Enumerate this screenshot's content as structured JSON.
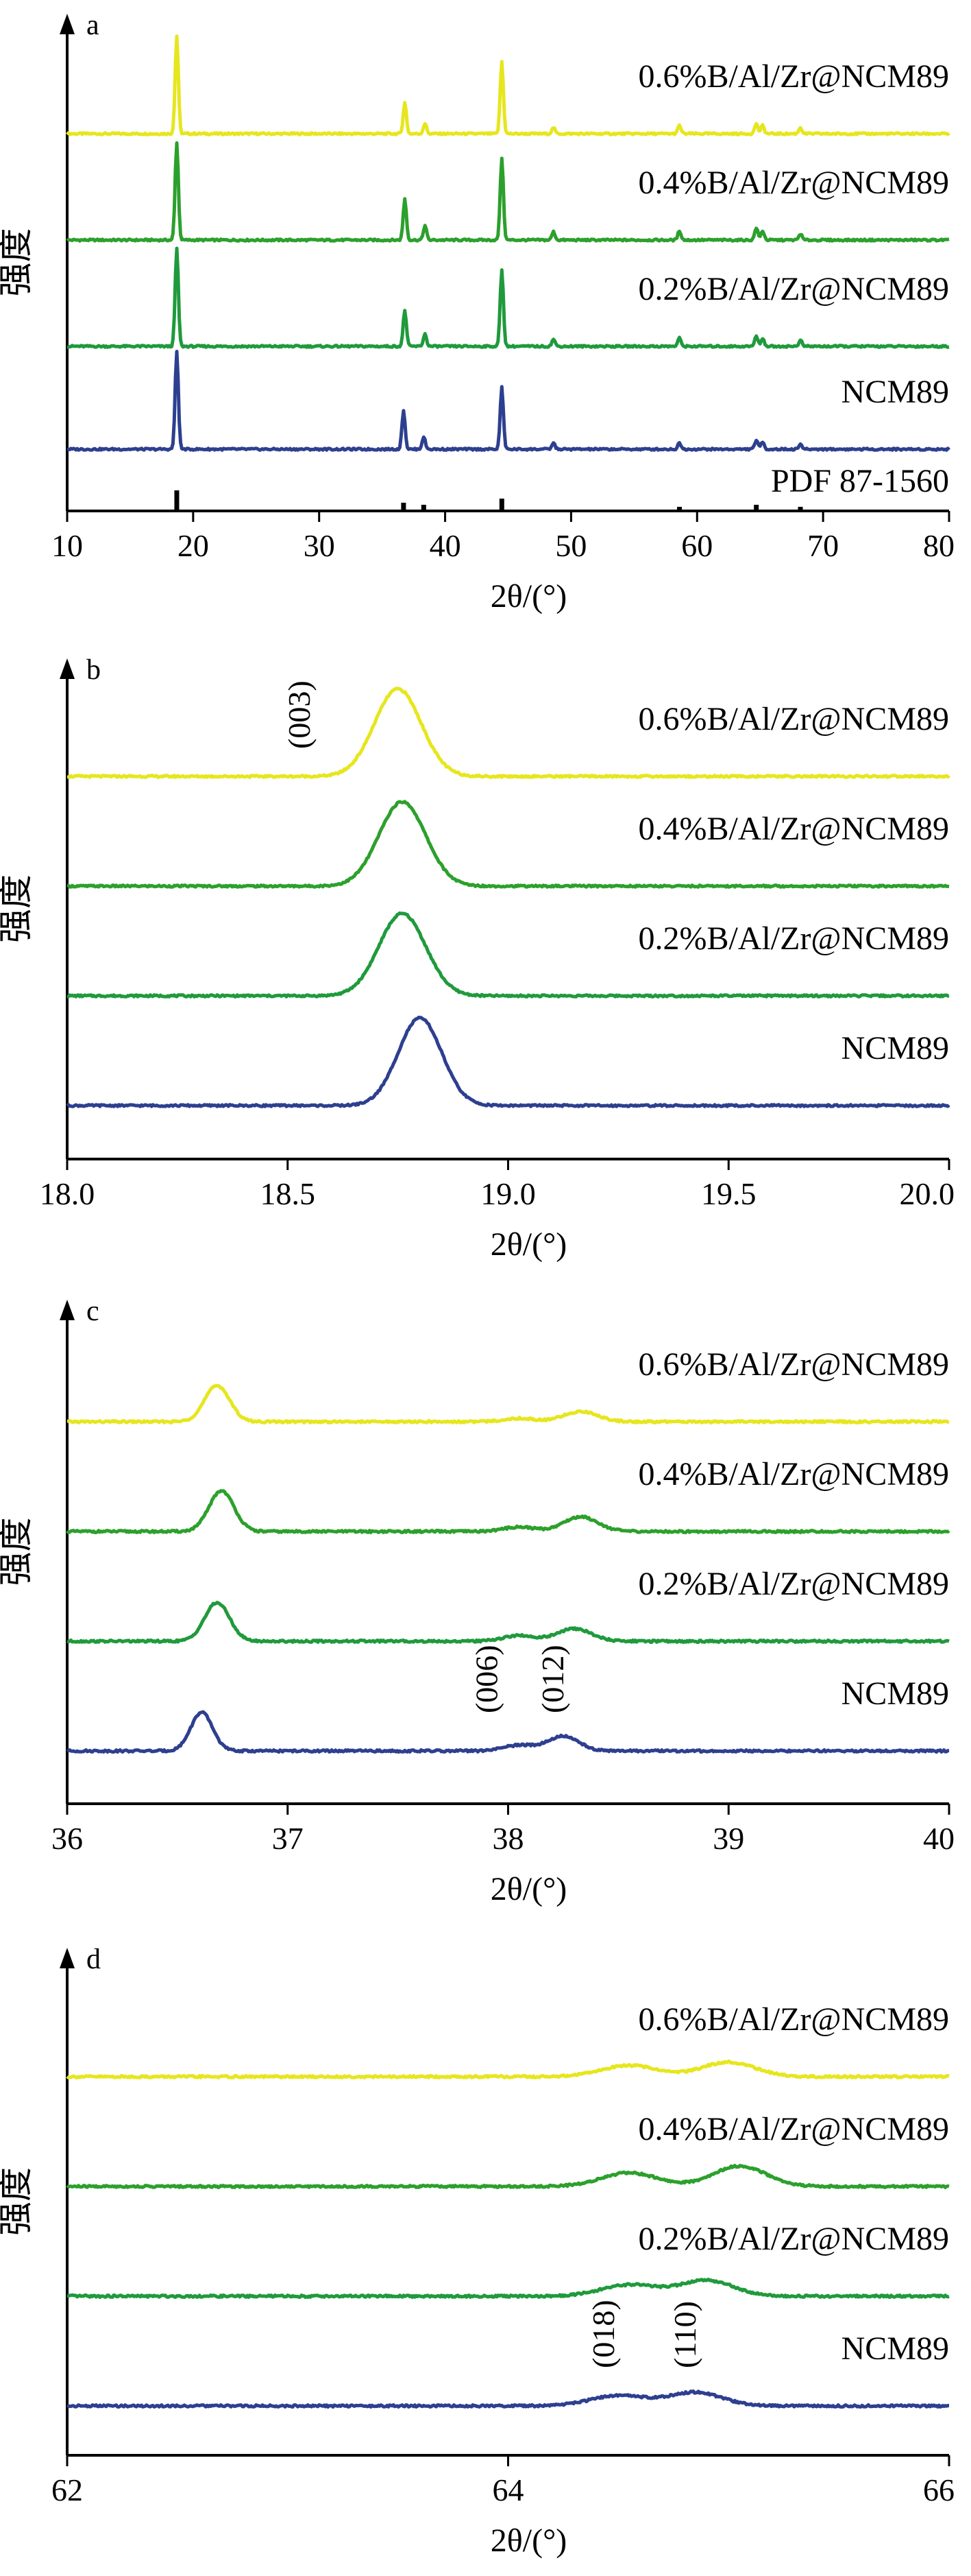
{
  "chart_data": [
    {
      "type": "line",
      "panel_label": "a",
      "xlabel": "2θ/(°)",
      "ylabel": "强度",
      "xlim": [
        10,
        80
      ],
      "xticks": [
        10,
        20,
        30,
        40,
        50,
        60,
        70,
        80
      ],
      "series": [
        {
          "name": "0.6%B/Al/Zr@NCM89",
          "color": "#e6e61e",
          "offset": 4,
          "peaks": [
            [
              18.7,
              0.95
            ],
            [
              36.8,
              0.3
            ],
            [
              38.4,
              0.1
            ],
            [
              44.5,
              0.7
            ],
            [
              48.6,
              0.06
            ],
            [
              58.6,
              0.08
            ],
            [
              64.7,
              0.1
            ],
            [
              65.2,
              0.08
            ],
            [
              68.2,
              0.06
            ]
          ]
        },
        {
          "name": "0.4%B/Al/Zr@NCM89",
          "color": "#2ca02c",
          "offset": 3,
          "peaks": [
            [
              18.7,
              0.95
            ],
            [
              36.8,
              0.4
            ],
            [
              38.4,
              0.14
            ],
            [
              44.5,
              0.8
            ],
            [
              48.6,
              0.08
            ],
            [
              58.6,
              0.09
            ],
            [
              64.7,
              0.12
            ],
            [
              65.2,
              0.09
            ],
            [
              68.2,
              0.06
            ]
          ]
        },
        {
          "name": "0.2%B/Al/Zr@NCM89",
          "color": "#1f9a3c",
          "offset": 2,
          "peaks": [
            [
              18.7,
              0.95
            ],
            [
              36.8,
              0.35
            ],
            [
              38.4,
              0.12
            ],
            [
              44.5,
              0.75
            ],
            [
              48.6,
              0.07
            ],
            [
              58.6,
              0.08
            ],
            [
              64.7,
              0.1
            ],
            [
              65.2,
              0.08
            ],
            [
              68.2,
              0.06
            ]
          ]
        },
        {
          "name": "NCM89",
          "color": "#2d3f8f",
          "offset": 1,
          "peaks": [
            [
              18.7,
              0.95
            ],
            [
              36.7,
              0.38
            ],
            [
              38.3,
              0.12
            ],
            [
              44.5,
              0.6
            ],
            [
              48.6,
              0.06
            ],
            [
              58.6,
              0.06
            ],
            [
              64.7,
              0.09
            ],
            [
              65.2,
              0.07
            ],
            [
              68.2,
              0.05
            ]
          ]
        }
      ],
      "reference": {
        "name": "PDF 87-1560",
        "color": "#000000",
        "lines": [
          [
            18.7,
            0.2
          ],
          [
            36.7,
            0.08
          ],
          [
            38.3,
            0.06
          ],
          [
            44.5,
            0.12
          ],
          [
            58.6,
            0.04
          ],
          [
            64.7,
            0.06
          ],
          [
            68.2,
            0.04
          ]
        ]
      }
    },
    {
      "type": "line",
      "panel_label": "b",
      "xlabel": "2θ/(°)",
      "ylabel": "强度",
      "xlim": [
        18.0,
        20.0
      ],
      "xticks": [
        "18.0",
        "18.5",
        "19.0",
        "19.5",
        "20.0"
      ],
      "series": [
        {
          "name": "0.6%B/Al/Zr@NCM89",
          "color": "#e6e61e",
          "offset": 4,
          "peak_center": 18.75,
          "peak_height": 0.85,
          "peak_width": 0.075
        },
        {
          "name": "0.4%B/Al/Zr@NCM89",
          "color": "#2ca02c",
          "offset": 3,
          "peak_center": 18.76,
          "peak_height": 0.82,
          "peak_width": 0.075
        },
        {
          "name": "0.2%B/Al/Zr@NCM89",
          "color": "#1f9a3c",
          "offset": 2,
          "peak_center": 18.76,
          "peak_height": 0.8,
          "peak_width": 0.075
        },
        {
          "name": "NCM89",
          "color": "#2d3f8f",
          "offset": 1,
          "peak_center": 18.8,
          "peak_height": 0.85,
          "peak_width": 0.07
        }
      ],
      "annotations": [
        {
          "text": "(003)",
          "x": 18.55,
          "series": 0
        }
      ]
    },
    {
      "type": "line",
      "panel_label": "c",
      "xlabel": "2θ/(°)",
      "ylabel": "强度",
      "xlim": [
        36,
        40
      ],
      "xticks": [
        "36",
        "37",
        "38",
        "39",
        "40"
      ],
      "series": [
        {
          "name": "0.6%B/Al/Zr@NCM89",
          "color": "#e6e61e",
          "offset": 4,
          "peaks": [
            [
              36.68,
              0.32,
              0.08
            ],
            [
              38.05,
              0.03,
              0.1
            ],
            [
              38.33,
              0.09,
              0.11
            ]
          ]
        },
        {
          "name": "0.4%B/Al/Zr@NCM89",
          "color": "#2ca02c",
          "offset": 3,
          "peaks": [
            [
              36.7,
              0.36,
              0.08
            ],
            [
              38.05,
              0.04,
              0.1
            ],
            [
              38.33,
              0.13,
              0.11
            ]
          ]
        },
        {
          "name": "0.2%B/Al/Zr@NCM89",
          "color": "#1f9a3c",
          "offset": 2,
          "peaks": [
            [
              36.68,
              0.34,
              0.08
            ],
            [
              38.05,
              0.05,
              0.1
            ],
            [
              38.3,
              0.11,
              0.11
            ]
          ]
        },
        {
          "name": "NCM89",
          "color": "#2d3f8f",
          "offset": 1,
          "peaks": [
            [
              36.61,
              0.34,
              0.07
            ],
            [
              38.05,
              0.05,
              0.1
            ],
            [
              38.25,
              0.13,
              0.1
            ]
          ]
        }
      ],
      "annotations": [
        {
          "text": "(006)",
          "x": 37.95,
          "series": 3
        },
        {
          "text": "(012)",
          "x": 38.25,
          "series": 3
        }
      ]
    },
    {
      "type": "line",
      "panel_label": "d",
      "xlabel": "2θ/(°)",
      "ylabel": "强度",
      "xlim": [
        62,
        66
      ],
      "xticks": [
        "62",
        "64",
        "66"
      ],
      "series": [
        {
          "name": "0.6%B/Al/Zr@NCM89",
          "color": "#e6e61e",
          "offset": 4,
          "peaks": [
            [
              64.55,
              0.1,
              0.18
            ],
            [
              65.0,
              0.13,
              0.17
            ]
          ]
        },
        {
          "name": "0.4%B/Al/Zr@NCM89",
          "color": "#2ca02c",
          "offset": 3,
          "peaks": [
            [
              64.55,
              0.12,
              0.18
            ],
            [
              65.05,
              0.18,
              0.17
            ]
          ]
        },
        {
          "name": "0.2%B/Al/Zr@NCM89",
          "color": "#1f9a3c",
          "offset": 2,
          "peaks": [
            [
              64.55,
              0.1,
              0.18
            ],
            [
              64.9,
              0.14,
              0.17
            ]
          ]
        },
        {
          "name": "NCM89",
          "color": "#2d3f8f",
          "offset": 1,
          "peaks": [
            [
              64.5,
              0.09,
              0.18
            ],
            [
              64.85,
              0.12,
              0.17
            ]
          ]
        }
      ],
      "annotations": [
        {
          "text": "(018)",
          "x": 64.48,
          "series": 3
        },
        {
          "text": "(110)",
          "x": 64.85,
          "series": 3
        }
      ]
    }
  ]
}
